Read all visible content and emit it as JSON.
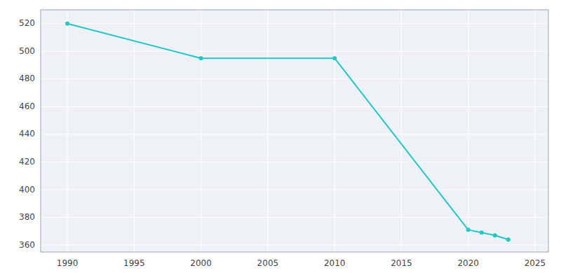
{
  "chart_data": {
    "type": "line",
    "x": [
      1990,
      2000,
      2010,
      2020,
      2021,
      2022,
      2023
    ],
    "values": [
      520,
      495,
      495,
      371,
      369,
      367,
      364
    ],
    "color": "#20c8c8",
    "marker": "circle",
    "xlim": [
      1988,
      2026
    ],
    "ylim": [
      355,
      530
    ],
    "xticks": [
      1990,
      1995,
      2000,
      2005,
      2010,
      2015,
      2020,
      2025
    ],
    "yticks": [
      360,
      380,
      400,
      420,
      440,
      460,
      480,
      500,
      520
    ],
    "grid": true
  }
}
